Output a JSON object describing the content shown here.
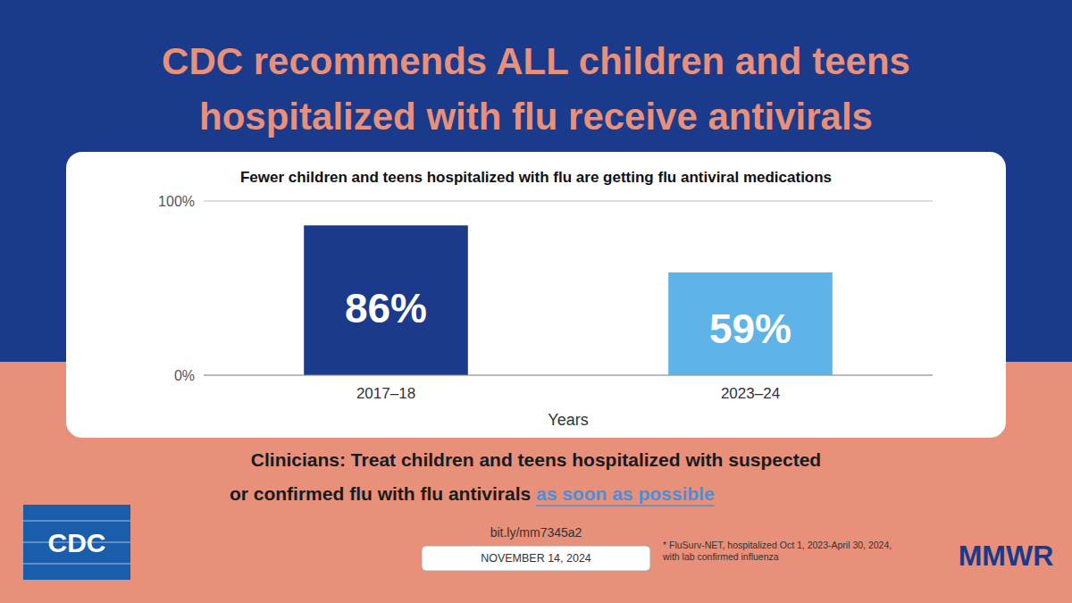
{
  "chart_data": {
    "type": "bar",
    "title": "Fewer children and teens hospitalized with flu are getting flu antiviral medications",
    "categories": [
      "2017–18",
      "2023–24"
    ],
    "values": [
      86,
      59
    ],
    "value_labels": [
      "86%",
      "59%"
    ],
    "data_labels": true,
    "colors": [
      "#1B3A8C",
      "#5EB3E8"
    ],
    "xlabel": "Years",
    "ylim": [
      0,
      100
    ],
    "yticks": [
      {
        "value": 0,
        "label": "0%"
      },
      {
        "value": 100,
        "label": "100%"
      }
    ],
    "grid": true,
    "annotations": [
      "CDC recommends ALL children and teens",
      "hospitalized with flu receive antivirals",
      "Clinicians: Treat children and teens hospitalized with suspected",
      "or confirmed flu with flu antivirals ",
      "as soon as possible",
      "bit.ly/mm7345a2",
      "NOVEMBER 14, 2024",
      "* FluSurv-NET, hospitalized Oct 1, 2023-April 30, 2024,\nwith lab confirmed influenza",
      "MMWR",
      "CDC"
    ]
  }
}
